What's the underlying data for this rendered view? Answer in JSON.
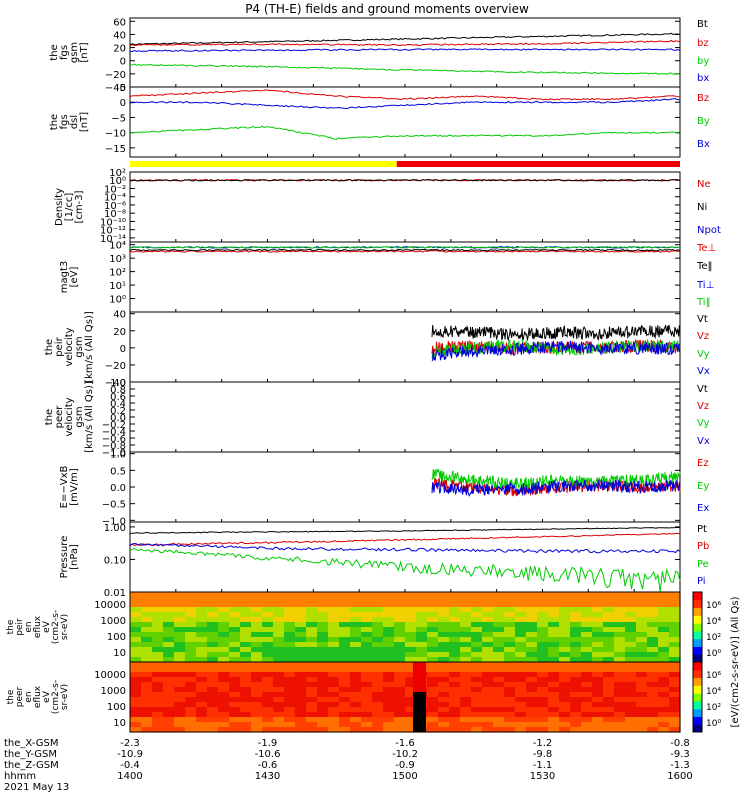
{
  "title": "P4 (TH-E) fields and ground moments overview",
  "colors": {
    "black": "#000000",
    "red": "#dd0000",
    "green": "#00cc00",
    "blue": "#0000dd",
    "yellow": "#ffff00",
    "bar_red": "#ee0000"
  },
  "chart_data": {
    "type": "line",
    "x_range_hhmm": [
      "1400",
      "1600"
    ],
    "panels": [
      {
        "id": "fgs-gsm",
        "ylabel": [
          "the",
          "fgs",
          "gsm",
          "[nT]"
        ],
        "scale": "linear",
        "ylim": [
          -40,
          65
        ],
        "ticks": [
          -40,
          -20,
          0,
          20,
          40,
          60
        ],
        "tick_labels": [
          "−40",
          "−20",
          "0",
          "20",
          "40",
          "60"
        ],
        "series": [
          {
            "name": "Bt",
            "color": "black",
            "values": [
              25,
              29,
              33,
              37,
              41
            ]
          },
          {
            "name": "bz",
            "color": "red",
            "values": [
              24,
              25,
              24,
              26,
              30
            ]
          },
          {
            "name": "by",
            "color": "green",
            "values": [
              -6,
              -9,
              -14,
              -18,
              -20
            ]
          },
          {
            "name": "bx",
            "color": "blue",
            "values": [
              15,
              16,
              17,
              17,
              17
            ]
          }
        ]
      },
      {
        "id": "fgs-dsl",
        "ylabel": [
          "the",
          "fgs",
          "dsl",
          "[nT]"
        ],
        "scale": "linear",
        "ylim": [
          -18,
          5
        ],
        "ticks": [
          -15,
          -10,
          -5,
          0,
          5
        ],
        "tick_labels": [
          "−15",
          "−10",
          "−5",
          "0",
          "5"
        ],
        "series": [
          {
            "name": "Bz",
            "color": "red",
            "values": [
              2,
              3,
              4,
              2,
              1,
              2,
              1,
              1,
              2
            ]
          },
          {
            "name": "By",
            "color": "green",
            "values": [
              -10,
              -9,
              -8,
              -12,
              -11,
              -11,
              -11,
              -10,
              -10
            ]
          },
          {
            "name": "Bx",
            "color": "blue",
            "values": [
              0,
              0,
              -1,
              -2,
              -1,
              0,
              0,
              0,
              1
            ]
          }
        ]
      },
      {
        "id": "density",
        "ylabel": [
          "Density",
          "[1/cc]",
          "[cm-3]"
        ],
        "scale": "log",
        "ylim": [
          -15,
          2
        ],
        "ticks": [
          2,
          0,
          -2,
          -4,
          -6,
          -8,
          -10,
          -12,
          -14
        ],
        "tick_labels": [
          "10²",
          "10⁰",
          "10⁻²",
          "10⁻⁴",
          "10⁻⁶",
          "10⁻⁸",
          "10⁻¹⁰",
          "10⁻¹²",
          "10⁻¹⁴"
        ],
        "series": [
          {
            "name": "Ne",
            "color": "red",
            "values": [
              0,
              0
            ]
          },
          {
            "name": "Ni",
            "color": "black",
            "values": [
              0,
              0
            ]
          },
          {
            "name": "Npot",
            "color": "blue",
            "values": []
          }
        ]
      },
      {
        "id": "temperature",
        "ylabel": [
          "magt3",
          "[eV]"
        ],
        "scale": "log",
        "ylim": [
          -1,
          4.2
        ],
        "ticks": [
          4,
          3,
          2,
          1,
          0
        ],
        "tick_labels": [
          "10⁴",
          "10³",
          "10²",
          "10¹",
          "10⁰"
        ],
        "series": [
          {
            "name": "Te⊥",
            "color": "red",
            "values": [
              3.5,
              3.5
            ]
          },
          {
            "name": "Te‖",
            "color": "black",
            "values": [
              3.6,
              3.6
            ]
          },
          {
            "name": "Ti⊥",
            "color": "blue",
            "values": [
              3.8,
              3.8
            ]
          },
          {
            "name": "Ti‖",
            "color": "green",
            "values": [
              3.8,
              3.8
            ]
          }
        ]
      },
      {
        "id": "peir-velocity",
        "ylabel": [
          "the",
          "peir",
          "velocity",
          "gsm",
          "[km/s (All Qs)]"
        ],
        "scale": "linear",
        "ylim": [
          -40,
          42
        ],
        "ticks": [
          -40,
          -20,
          0,
          20,
          40
        ],
        "tick_labels": [
          "−40",
          "−20",
          "0",
          "20",
          "40"
        ],
        "series": [
          {
            "name": "Vt",
            "color": "black",
            "values": [
              20,
              18,
              16,
              18,
              17,
              19,
              20
            ]
          },
          {
            "name": "Vz",
            "color": "red",
            "values": [
              0,
              2,
              -1,
              1,
              0,
              2,
              1
            ]
          },
          {
            "name": "Vy",
            "color": "green",
            "values": [
              -5,
              0,
              3,
              -2,
              0,
              2,
              1
            ]
          },
          {
            "name": "Vx",
            "color": "blue",
            "values": [
              -8,
              -4,
              -2,
              2,
              0,
              -1,
              0
            ]
          }
        ]
      },
      {
        "id": "peer-velocity",
        "ylabel": [
          "the",
          "peer",
          "velocity",
          "gsm",
          "[km/s (All Qs)]"
        ],
        "scale": "linear",
        "ylim": [
          -1,
          1
        ],
        "ticks": [
          -1,
          -0.8,
          -0.6,
          -0.4,
          -0.2,
          0,
          0.2,
          0.4,
          0.6,
          0.8,
          1
        ],
        "tick_labels": [
          "−1.0",
          "−0.8",
          "−0.6",
          "−0.4",
          "−0.2",
          "0.0",
          "0.2",
          "0.4",
          "0.6",
          "0.8",
          "1.0"
        ],
        "series": [
          {
            "name": "Vt",
            "color": "black",
            "values": []
          },
          {
            "name": "Vz",
            "color": "red",
            "values": []
          },
          {
            "name": "Vy",
            "color": "green",
            "values": []
          },
          {
            "name": "Vx",
            "color": "blue",
            "values": []
          }
        ]
      },
      {
        "id": "efield",
        "ylabel": [
          "E=−VxB",
          "[mV/m]"
        ],
        "scale": "linear",
        "ylim": [
          -1.05,
          1.05
        ],
        "ticks": [
          -1,
          -0.5,
          0,
          0.5,
          1
        ],
        "tick_labels": [
          "−1.0",
          "−0.5",
          "0.0",
          "0.5",
          "1.0"
        ],
        "series": [
          {
            "name": "Ez",
            "color": "red",
            "values": [
              0.1,
              0,
              -0.1,
              0,
              0.05,
              0,
              0.05
            ]
          },
          {
            "name": "Ey",
            "color": "green",
            "values": [
              0.4,
              0.2,
              0.1,
              0.2,
              0.15,
              0.2,
              0.3
            ]
          },
          {
            "name": "Ex",
            "color": "blue",
            "values": [
              0,
              -0.1,
              -0.05,
              0,
              0.05,
              0,
              0.05
            ]
          }
        ]
      },
      {
        "id": "pressure",
        "ylabel": [
          "Pressure",
          "[nPa]"
        ],
        "scale": "log",
        "ylim": [
          -2,
          0.15
        ],
        "ticks": [
          0,
          -1,
          -2
        ],
        "tick_labels": [
          "1.00",
          "0.10",
          "0.01"
        ],
        "series": [
          {
            "name": "Pt",
            "color": "black",
            "values": [
              0.65,
              0.7,
              0.75,
              0.85,
              0.95
            ]
          },
          {
            "name": "Pb",
            "color": "red",
            "values": [
              0.28,
              0.33,
              0.4,
              0.5,
              0.62
            ]
          },
          {
            "name": "Pe",
            "color": "green",
            "values": [
              0.2,
              0.11,
              0.06,
              0.04,
              0.025
            ]
          },
          {
            "name": "Pi",
            "color": "blue",
            "values": [
              0.3,
              0.22,
              0.2,
              0.18,
              0.18
            ]
          }
        ]
      }
    ],
    "spectrograms": [
      {
        "id": "peir-en-eflux",
        "ylabel": [
          "the",
          "peir",
          "en",
          "eflux",
          "eV",
          "(cm2-s-",
          "sr-eV)"
        ],
        "ticks": [
          "10000",
          "1000",
          "100",
          "10"
        ]
      },
      {
        "id": "peer-en-eflux",
        "ylabel": [
          "the",
          "peer",
          "en",
          "eflux",
          "eV",
          "(cm2-s-",
          "sr-eV)"
        ],
        "ticks": [
          "10000",
          "1000",
          "100",
          "10"
        ]
      }
    ],
    "colorbar": {
      "label": "[eV/(cm2-s-sr-eV)] (All Qs)",
      "ticks": [
        "10⁶",
        "10⁴",
        "10²",
        "10⁰"
      ]
    },
    "ephemeris": {
      "rows": [
        {
          "label": "the_X-GSM",
          "values": [
            "-2.3",
            "-1.9",
            "-1.6",
            "-1.2",
            "-0.8"
          ]
        },
        {
          "label": "the_Y-GSM",
          "values": [
            "-10.9",
            "-10.6",
            "-10.2",
            "-9.8",
            "-9.3"
          ]
        },
        {
          "label": "the_Z-GSM",
          "values": [
            "-0.4",
            "-0.6",
            "-0.9",
            "-1.1",
            "-1.3"
          ]
        },
        {
          "label": "hhmm",
          "values": [
            "1400",
            "1430",
            "1500",
            "1530",
            "1600"
          ]
        }
      ],
      "date": "2021 May 13"
    },
    "mode_bar": {
      "segments": [
        {
          "from": 0,
          "to": 0.485,
          "color": "yellow"
        },
        {
          "from": 0.485,
          "to": 1,
          "color": "bar_red"
        }
      ]
    }
  }
}
